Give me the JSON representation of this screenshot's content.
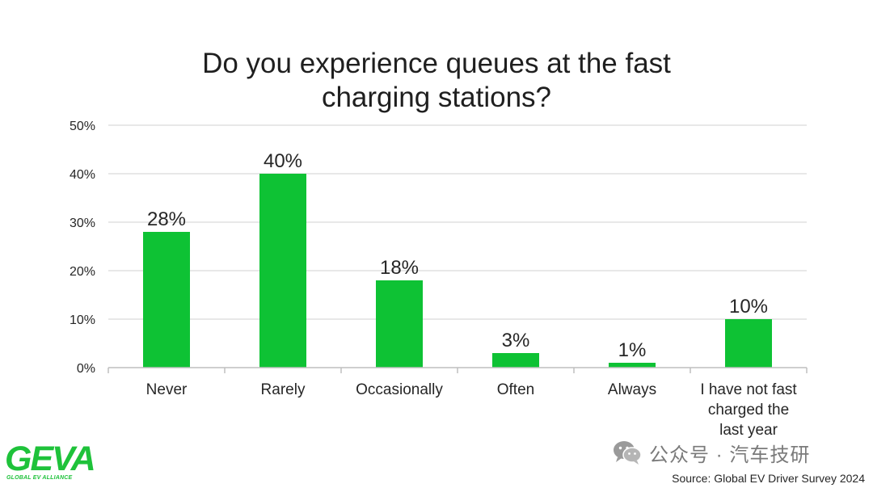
{
  "colors": {
    "bar": "#0ec234",
    "grid": "#d9d9d9",
    "axis": "#bfbfbf",
    "text": "#262626"
  },
  "chart_data": {
    "type": "bar",
    "title": "Do you experience queues at the fast\ncharging stations?",
    "categories": [
      "Never",
      "Rarely",
      "Occasionally",
      "Often",
      "Always",
      "I have not fast charged the last year"
    ],
    "category_lines": [
      [
        "Never"
      ],
      [
        "Rarely"
      ],
      [
        "Occasionally"
      ],
      [
        "Often"
      ],
      [
        "Always"
      ],
      [
        "I have not fast",
        "charged the",
        "last year"
      ]
    ],
    "values": [
      28,
      40,
      18,
      3,
      1,
      10
    ],
    "data_labels": [
      "28%",
      "40%",
      "18%",
      "3%",
      "1%",
      "10%"
    ],
    "ylim": [
      0,
      50
    ],
    "yticks": [
      0,
      10,
      20,
      30,
      40,
      50
    ],
    "ytick_labels": [
      "0%",
      "10%",
      "20%",
      "30%",
      "40%",
      "50%"
    ],
    "xlabel": "",
    "ylabel": "",
    "grid": true,
    "legend": "none"
  },
  "branding": {
    "logo_text": "GEVA",
    "logo_subtext": "GLOBAL EV ALLIANCE",
    "watermark": "公众号 · 汽车技研",
    "watermark_icon": "wechat-icon",
    "source": "Source: Global EV Driver Survey 2024"
  }
}
